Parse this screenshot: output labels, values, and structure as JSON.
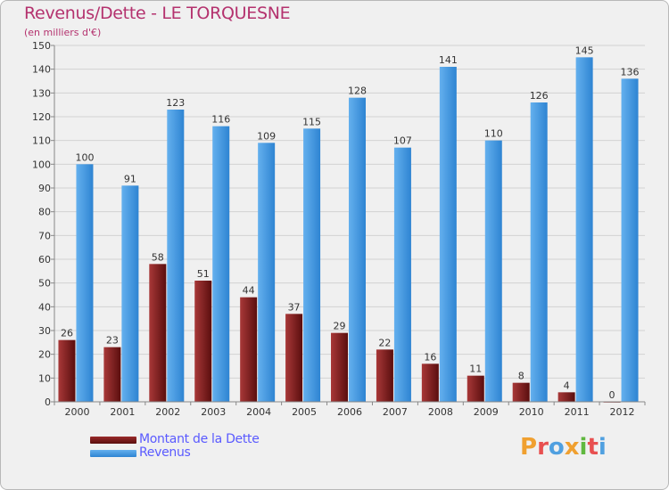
{
  "title": "Revenus/Dette - LE TORQUESNE",
  "subtitle": "(en milliers d'€)",
  "logo": {
    "text": "Proxiti",
    "letters": [
      {
        "ch": "P",
        "color": "#f0a030"
      },
      {
        "ch": "r",
        "color": "#e85050"
      },
      {
        "ch": "o",
        "color": "#50a0e0"
      },
      {
        "ch": "x",
        "color": "#f0a030"
      },
      {
        "ch": "i",
        "color": "#60b840"
      },
      {
        "ch": "t",
        "color": "#e85050"
      },
      {
        "ch": "i",
        "color": "#50a0e0"
      }
    ]
  },
  "colors": {
    "dette": "#7a1a1a",
    "dette_light": "#a83838",
    "revenus": "#3a90dc",
    "revenus_light": "#64b0ee",
    "text": "#333333"
  },
  "chart_data": {
    "type": "bar",
    "categories": [
      "2000",
      "2001",
      "2002",
      "2003",
      "2004",
      "2005",
      "2006",
      "2007",
      "2008",
      "2009",
      "2010",
      "2011",
      "2012"
    ],
    "series": [
      {
        "name": "Montant de la Dette",
        "values": [
          26,
          23,
          58,
          51,
          44,
          37,
          29,
          22,
          16,
          11,
          8,
          4,
          0
        ]
      },
      {
        "name": "Revenus",
        "values": [
          100,
          91,
          123,
          116,
          109,
          115,
          128,
          107,
          141,
          110,
          126,
          145,
          136
        ]
      }
    ],
    "ylim": [
      0,
      150
    ],
    "yticks": [
      "0",
      "10",
      "20",
      "30",
      "40",
      "50",
      "60",
      "70",
      "80",
      "90",
      "100",
      "110",
      "120",
      "130",
      "140",
      "150"
    ],
    "grid": true,
    "legend": "bottom-left"
  }
}
